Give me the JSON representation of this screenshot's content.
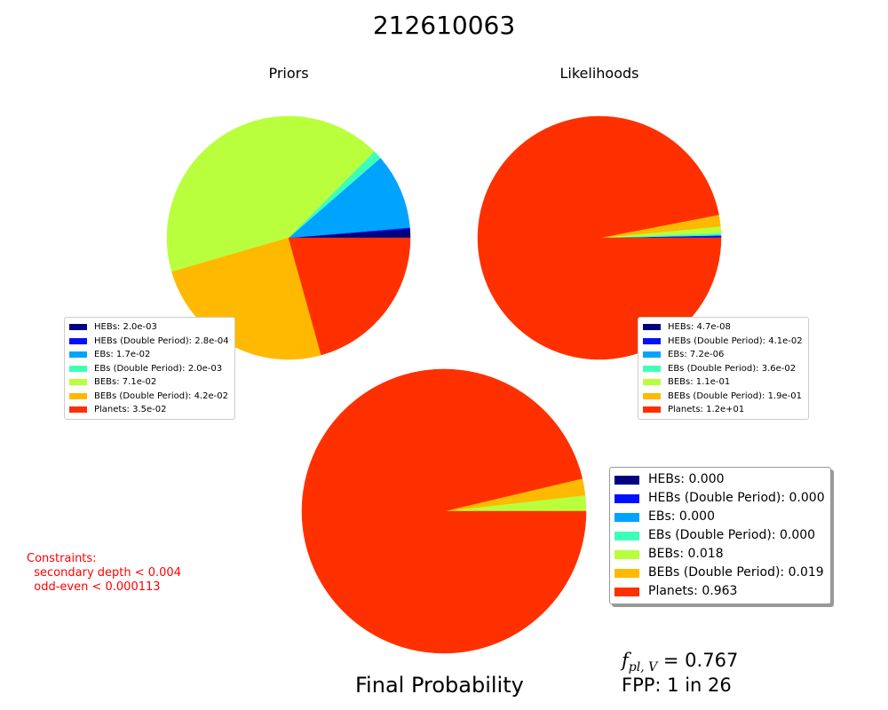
{
  "title": "212610063",
  "chart_data": [
    {
      "type": "pie",
      "title": "Priors",
      "slices": [
        {
          "label": "HEBs",
          "value": 0.002,
          "color": "#000080"
        },
        {
          "label": "HEBs (Double Period)",
          "value": 0.00028,
          "color": "#0010ff"
        },
        {
          "label": "EBs",
          "value": 0.017,
          "color": "#00a4ff"
        },
        {
          "label": "EBs (Double Period)",
          "value": 0.002,
          "color": "#3dffb9"
        },
        {
          "label": "BEBs",
          "value": 0.071,
          "color": "#b9ff3d"
        },
        {
          "label": "BEBs (Double Period)",
          "value": 0.042,
          "color": "#ffb900"
        },
        {
          "label": "Planets",
          "value": 0.035,
          "color": "#ff3000"
        }
      ],
      "legend_labels": [
        "HEBs: 2.0e-03",
        "HEBs (Double Period): 2.8e-04",
        "EBs: 1.7e-02",
        "EBs (Double Period): 2.0e-03",
        "BEBs: 7.1e-02",
        "BEBs (Double Period): 4.2e-02",
        "Planets: 3.5e-02"
      ],
      "legend_placement": "lower-left"
    },
    {
      "type": "pie",
      "title": "Likelihoods",
      "slices": [
        {
          "label": "HEBs",
          "value": 4.7e-08,
          "color": "#000080"
        },
        {
          "label": "HEBs (Double Period)",
          "value": 0.041,
          "color": "#0010ff"
        },
        {
          "label": "EBs",
          "value": 7.2e-06,
          "color": "#00a4ff"
        },
        {
          "label": "EBs (Double Period)",
          "value": 0.036,
          "color": "#3dffb9"
        },
        {
          "label": "BEBs",
          "value": 0.11,
          "color": "#b9ff3d"
        },
        {
          "label": "BEBs (Double Period)",
          "value": 0.19,
          "color": "#ffb900"
        },
        {
          "label": "Planets",
          "value": 12,
          "color": "#ff3000"
        }
      ],
      "legend_labels": [
        "HEBs: 4.7e-08",
        "HEBs (Double Period): 4.1e-02",
        "EBs: 7.2e-06",
        "EBs (Double Period): 3.6e-02",
        "BEBs: 1.1e-01",
        "BEBs (Double Period): 1.9e-01",
        "Planets: 1.2e+01"
      ],
      "legend_placement": "lower-right"
    },
    {
      "type": "pie",
      "title": "Final Probability",
      "slices": [
        {
          "label": "HEBs",
          "value": 0.0,
          "color": "#000080"
        },
        {
          "label": "HEBs (Double Period)",
          "value": 0.0,
          "color": "#0010ff"
        },
        {
          "label": "EBs",
          "value": 0.0,
          "color": "#00a4ff"
        },
        {
          "label": "EBs (Double Period)",
          "value": 0.0,
          "color": "#3dffb9"
        },
        {
          "label": "BEBs",
          "value": 0.018,
          "color": "#b9ff3d"
        },
        {
          "label": "BEBs (Double Period)",
          "value": 0.019,
          "color": "#ffb900"
        },
        {
          "label": "Planets",
          "value": 0.963,
          "color": "#ff3000"
        }
      ],
      "legend_labels": [
        "HEBs: 0.000",
        "HEBs (Double Period): 0.000",
        "EBs: 0.000",
        "EBs (Double Period): 0.000",
        "BEBs: 0.018",
        "BEBs (Double Period): 0.019",
        "Planets: 0.963"
      ],
      "legend_placement": "right"
    }
  ],
  "constraints_text": "Constraints:\n  secondary depth < 0.004\n  odd-even < 0.000113",
  "fpl": {
    "symbol": "f",
    "subscript": "pl, V",
    "value_text": " = 0.767"
  },
  "fpp_text": "FPP: 1 in 26"
}
